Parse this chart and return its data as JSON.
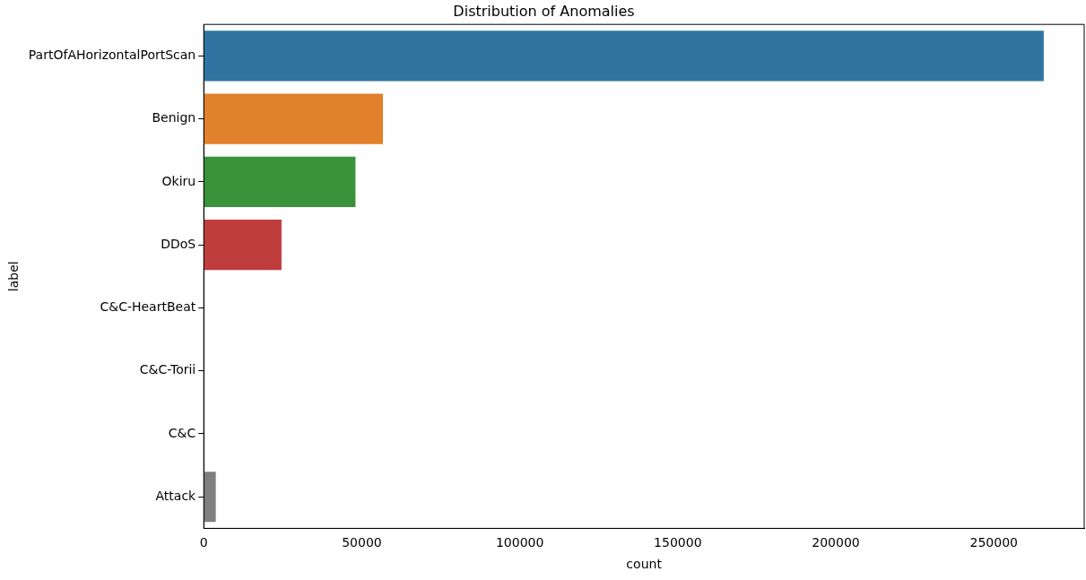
{
  "chart_data": {
    "type": "bar",
    "orientation": "horizontal",
    "title": "Distribution of Anomalies",
    "xlabel": "count",
    "ylabel": "label",
    "categories": [
      "PartOfAHorizontalPortScan",
      "Benign",
      "Okiru",
      "DDoS",
      "C&C-HeartBeat",
      "C&C-Torii",
      "C&C",
      "Attack"
    ],
    "values": [
      265800,
      56700,
      48000,
      24600,
      0,
      0,
      0,
      3800
    ],
    "colors": [
      "#3274a1",
      "#e1812c",
      "#3a923a",
      "#c03d3e",
      "#9372b2",
      "#845b53",
      "#d684bd",
      "#7f7f7f"
    ],
    "xlim": [
      0,
      278600
    ],
    "xticks": [
      0,
      50000,
      100000,
      150000,
      200000,
      250000
    ],
    "grid": false,
    "legend": false
  }
}
